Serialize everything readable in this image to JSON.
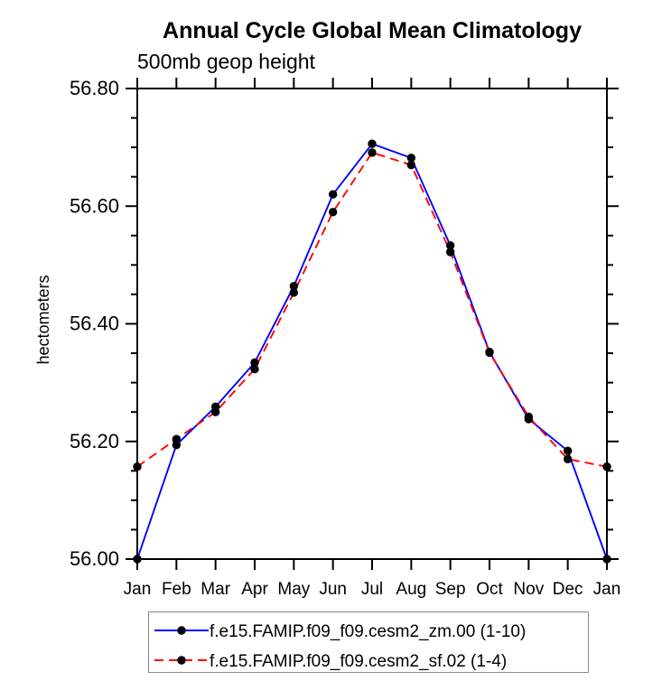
{
  "page": {
    "background": "#ffffff"
  },
  "chart_data": {
    "type": "line",
    "title": "Annual Cycle Global Mean Climatology",
    "subtitle": "500mb geop height",
    "ylabel": "hectometers",
    "xlabel": "",
    "categories": [
      "Jan",
      "Feb",
      "Mar",
      "Apr",
      "May",
      "Jun",
      "Jul",
      "Aug",
      "Sep",
      "Oct",
      "Nov",
      "Dec",
      "Jan"
    ],
    "ylim": [
      56.0,
      56.8
    ],
    "ytick_major_step": 0.2,
    "ytick_minor_step": 0.05,
    "ytick_labels": [
      "56.00",
      "56.20",
      "56.40",
      "56.60",
      "56.80"
    ],
    "grid": false,
    "legend_position": "bottom",
    "axis_color": "#000000",
    "legend_border_color": "#888888",
    "marker": {
      "shape": "circle",
      "color": "#000000",
      "radius": 4.7
    },
    "series": [
      {
        "name": "f.e15.FAMIP.f09_f09.cesm2_zm.00 (1-10)",
        "color": "#0000ff",
        "line_style": "solid",
        "values": [
          56.0,
          56.194,
          56.259,
          56.334,
          56.464,
          56.62,
          56.706,
          56.682,
          56.533,
          56.352,
          56.238,
          56.184,
          56.0
        ]
      },
      {
        "name": "f.e15.FAMIP.f09_f09.cesm2_sf.02 (1-4)",
        "color": "#ff0000",
        "line_style": "dashed",
        "values": [
          56.157,
          56.204,
          56.25,
          56.323,
          56.453,
          56.59,
          56.691,
          56.67,
          56.522,
          56.351,
          56.242,
          56.17,
          56.157
        ]
      }
    ]
  }
}
